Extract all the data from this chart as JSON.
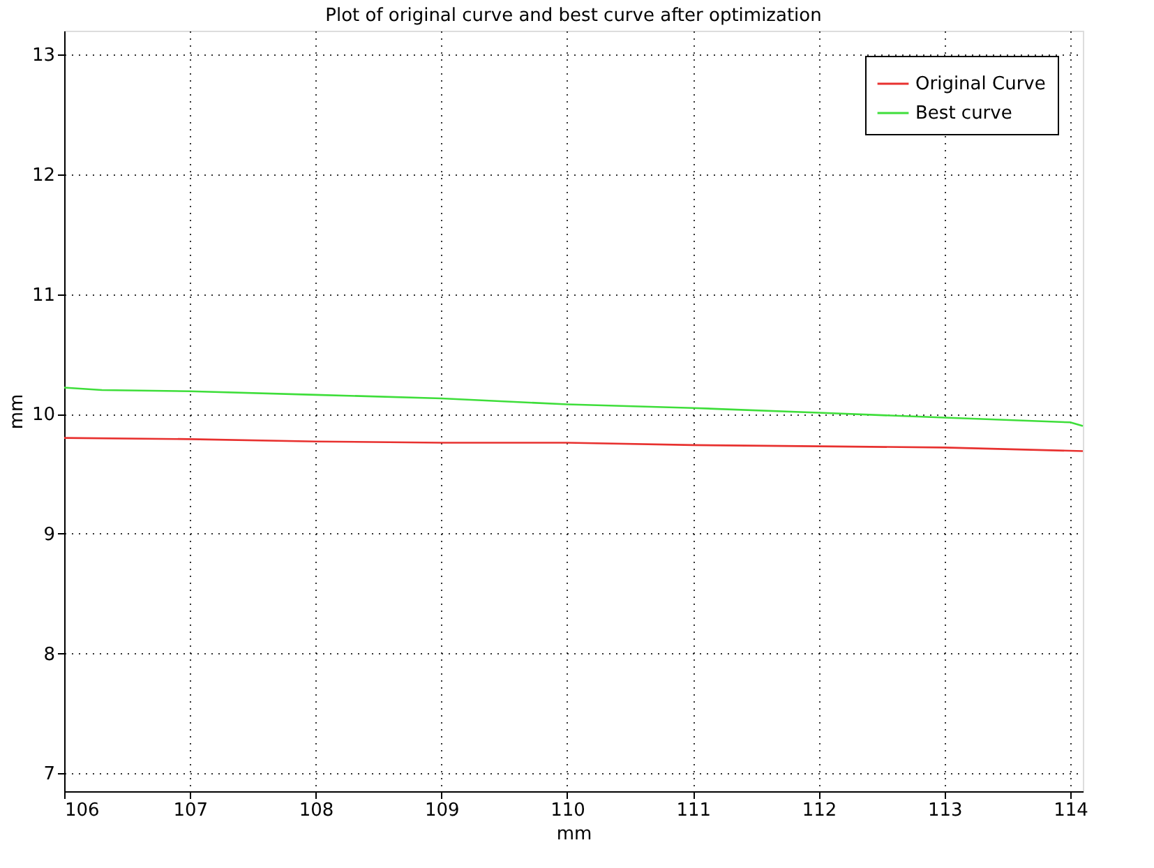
{
  "chart_data": {
    "type": "line",
    "title": "Plot of original curve and best curve after optimization",
    "xlabel": "mm",
    "ylabel": "mm",
    "xlim": [
      106,
      114.1
    ],
    "xticks": [
      106,
      107,
      108,
      109,
      110,
      111,
      112,
      113,
      114
    ],
    "ylim": [
      6.85,
      13.2
    ],
    "yticks": [
      7,
      8,
      9,
      10,
      11,
      12,
      13
    ],
    "grid": true,
    "legend": "top right",
    "line_style": "solid",
    "marker": "none",
    "series": [
      {
        "name": "Original Curve",
        "color": "#e8312f",
        "x": [
          106,
          107,
          108,
          109,
          110,
          111,
          112,
          113,
          114.1
        ],
        "values": [
          9.8,
          9.79,
          9.77,
          9.76,
          9.76,
          9.74,
          9.73,
          9.72,
          9.69
        ]
      },
      {
        "name": "Best curve",
        "color": "#3ede3a",
        "x": [
          106,
          106.3,
          107,
          108,
          109,
          110,
          111,
          112,
          113,
          114,
          114.1
        ],
        "values": [
          10.22,
          10.2,
          10.19,
          10.16,
          10.13,
          10.08,
          10.05,
          10.01,
          9.97,
          9.93,
          9.9
        ]
      }
    ]
  }
}
